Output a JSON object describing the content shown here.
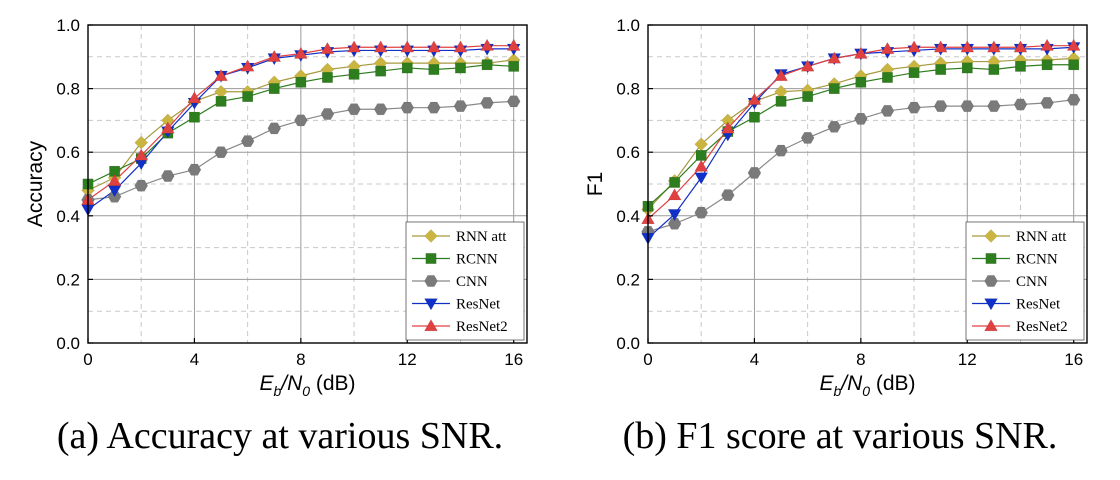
{
  "chart_data": [
    {
      "type": "line",
      "panel": "a",
      "caption": "(a) Accuracy at various SNR.",
      "ylabel": "Accuracy",
      "xlabel_parts": [
        "E",
        "b",
        "/N",
        "0",
        " (dB)"
      ],
      "xlim": [
        0,
        16.5
      ],
      "ylim": [
        0,
        1.0
      ],
      "xticks": [
        "0",
        "4",
        "8",
        "12",
        "16"
      ],
      "yticks": [
        "0.0",
        "0.2",
        "0.4",
        "0.6",
        "0.8",
        "1.0"
      ],
      "grid": true,
      "legend_position": "bottom-right",
      "x": [
        0,
        1,
        2,
        3,
        4,
        5,
        6,
        7,
        8,
        9,
        10,
        11,
        12,
        13,
        14,
        15,
        16
      ],
      "series": [
        {
          "name": "RNN att",
          "marker": "diamond",
          "color": "#c9b53f",
          "line": "#a69a3f",
          "values": [
            0.48,
            0.52,
            0.63,
            0.7,
            0.76,
            0.79,
            0.79,
            0.82,
            0.84,
            0.86,
            0.87,
            0.88,
            0.88,
            0.88,
            0.88,
            0.88,
            0.89
          ]
        },
        {
          "name": "RCNN",
          "marker": "square",
          "color": "#2e7d1e",
          "line": "#2e7d1e",
          "values": [
            0.5,
            0.54,
            0.58,
            0.66,
            0.71,
            0.76,
            0.775,
            0.8,
            0.82,
            0.835,
            0.845,
            0.855,
            0.865,
            0.86,
            0.865,
            0.875,
            0.87
          ]
        },
        {
          "name": "CNN",
          "marker": "hexagon",
          "color": "#7a7a7a",
          "line": "#888888",
          "values": [
            0.45,
            0.46,
            0.495,
            0.525,
            0.545,
            0.6,
            0.635,
            0.675,
            0.7,
            0.72,
            0.735,
            0.735,
            0.74,
            0.74,
            0.745,
            0.755,
            0.76
          ]
        },
        {
          "name": "ResNet",
          "marker": "triangle-down",
          "color": "#1030c8",
          "line": "#1030c8",
          "values": [
            0.42,
            0.48,
            0.565,
            0.665,
            0.755,
            0.84,
            0.865,
            0.895,
            0.905,
            0.915,
            0.92,
            0.92,
            0.92,
            0.92,
            0.92,
            0.925,
            0.925
          ]
        },
        {
          "name": "ResNet2",
          "marker": "triangle-up",
          "color": "#e04040",
          "line": "#e04040",
          "values": [
            0.45,
            0.51,
            0.59,
            0.675,
            0.77,
            0.84,
            0.87,
            0.9,
            0.91,
            0.925,
            0.93,
            0.93,
            0.93,
            0.93,
            0.93,
            0.935,
            0.935
          ]
        }
      ]
    },
    {
      "type": "line",
      "panel": "b",
      "caption": "(b) F1 score at various SNR.",
      "ylabel": "F1",
      "xlabel_parts": [
        "E",
        "b",
        "/N",
        "0",
        " (dB)"
      ],
      "xlim": [
        0,
        16.5
      ],
      "ylim": [
        0,
        1.0
      ],
      "xticks": [
        "0",
        "4",
        "8",
        "12",
        "16"
      ],
      "yticks": [
        "0.0",
        "0.2",
        "0.4",
        "0.6",
        "0.8",
        "1.0"
      ],
      "grid": true,
      "legend_position": "bottom-right",
      "x": [
        0,
        1,
        2,
        3,
        4,
        5,
        6,
        7,
        8,
        9,
        10,
        11,
        12,
        13,
        14,
        15,
        16
      ],
      "series": [
        {
          "name": "RNN att",
          "marker": "diamond",
          "color": "#c9b53f",
          "line": "#a69a3f",
          "values": [
            0.42,
            0.51,
            0.625,
            0.7,
            0.76,
            0.79,
            0.795,
            0.815,
            0.84,
            0.86,
            0.87,
            0.88,
            0.885,
            0.885,
            0.89,
            0.89,
            0.895
          ]
        },
        {
          "name": "RCNN",
          "marker": "square",
          "color": "#2e7d1e",
          "line": "#2e7d1e",
          "values": [
            0.43,
            0.505,
            0.59,
            0.665,
            0.71,
            0.76,
            0.775,
            0.8,
            0.82,
            0.835,
            0.85,
            0.86,
            0.865,
            0.86,
            0.87,
            0.875,
            0.875
          ]
        },
        {
          "name": "CNN",
          "marker": "hexagon",
          "color": "#7a7a7a",
          "line": "#888888",
          "values": [
            0.35,
            0.375,
            0.41,
            0.465,
            0.535,
            0.605,
            0.645,
            0.68,
            0.705,
            0.73,
            0.74,
            0.745,
            0.745,
            0.745,
            0.75,
            0.755,
            0.765
          ]
        },
        {
          "name": "ResNet",
          "marker": "triangle-down",
          "color": "#1030c8",
          "line": "#1030c8",
          "values": [
            0.33,
            0.405,
            0.52,
            0.655,
            0.755,
            0.845,
            0.87,
            0.895,
            0.91,
            0.915,
            0.92,
            0.925,
            0.925,
            0.925,
            0.925,
            0.925,
            0.93
          ]
        },
        {
          "name": "ResNet2",
          "marker": "triangle-up",
          "color": "#e04040",
          "line": "#e04040",
          "values": [
            0.39,
            0.465,
            0.555,
            0.675,
            0.765,
            0.84,
            0.87,
            0.895,
            0.91,
            0.925,
            0.93,
            0.93,
            0.93,
            0.93,
            0.93,
            0.935,
            0.935
          ]
        }
      ]
    }
  ]
}
